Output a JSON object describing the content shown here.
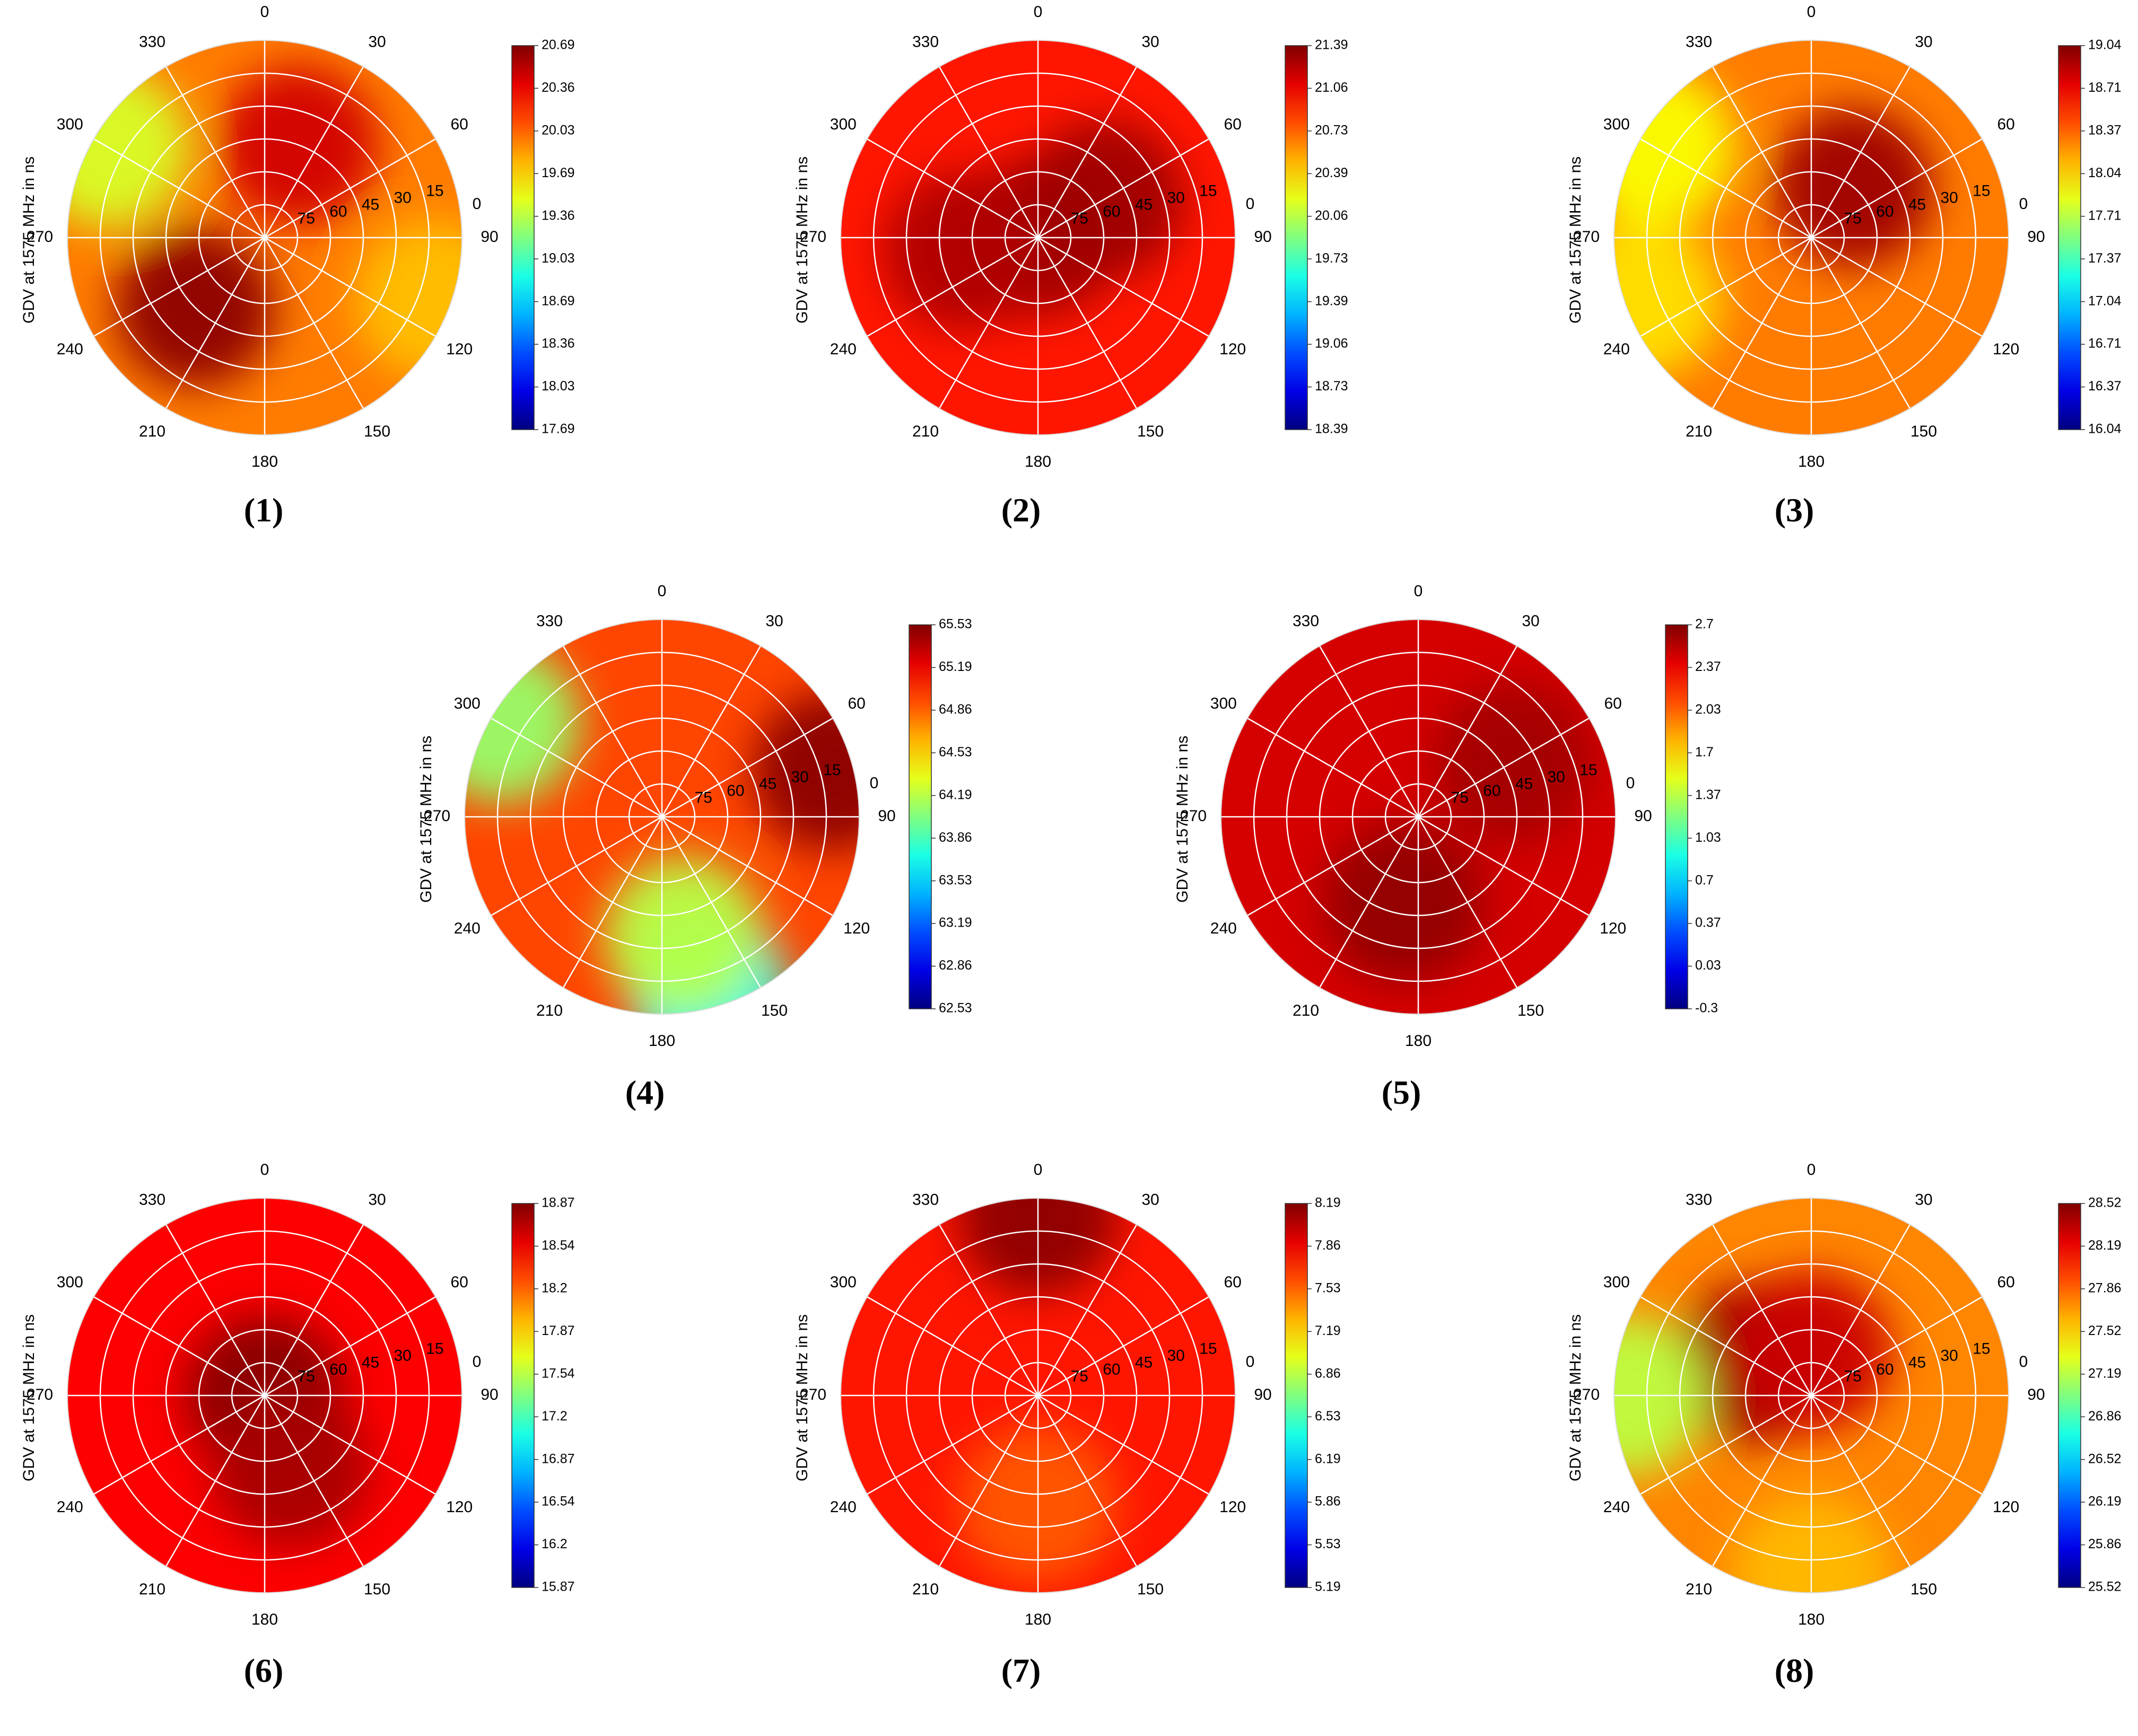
{
  "figure": {
    "panels": [
      {
        "id": "p1",
        "label": "(1)",
        "ylabel": "GDV at 1575 MHz in ns"
      },
      {
        "id": "p2",
        "label": "(2)",
        "ylabel": "GDV at 1575 MHz in ns"
      },
      {
        "id": "p3",
        "label": "(3)",
        "ylabel": "GDV at 1575 MHz in ns"
      },
      {
        "id": "p4",
        "label": "(4)",
        "ylabel": "GDV at 1575 MHz in ns"
      },
      {
        "id": "p5",
        "label": "(5)",
        "ylabel": "GDV at 1575 MHz in ns"
      },
      {
        "id": "p6",
        "label": "(6)",
        "ylabel": "GDV at 1575 MHz in ns"
      },
      {
        "id": "p7",
        "label": "(7)",
        "ylabel": "GDV at 1575 MHz in ns"
      },
      {
        "id": "p8",
        "label": "(8)",
        "ylabel": "GDV at 1575 MHz in ns"
      }
    ]
  },
  "chart_data": [
    {
      "type": "heatmap",
      "subtype": "polar",
      "label": "(1)",
      "ylabel": "GDV at 1575 MHz in ns",
      "azimuth_ticks": [
        "0",
        "30",
        "60",
        "90",
        "120",
        "150",
        "180",
        "210",
        "240",
        "270",
        "300",
        "330"
      ],
      "elevation_ticks": [
        "0",
        "15",
        "30",
        "45",
        "60",
        "75"
      ],
      "colorbar_ticks": [
        "20.69",
        "20.36",
        "20.03",
        "19.69",
        "19.36",
        "19.03",
        "18.69",
        "18.36",
        "18.03",
        "17.69"
      ],
      "colorbar_range": [
        17.69,
        20.69
      ],
      "base_value": 19.95,
      "features": [
        {
          "azimuth": 225,
          "elevation": 45,
          "value": 20.65
        },
        {
          "azimuth": 20,
          "elevation": 45,
          "value": 20.45
        },
        {
          "azimuth": 300,
          "elevation": 8,
          "value": 19.45
        },
        {
          "azimuth": 110,
          "elevation": 8,
          "value": 19.75
        }
      ]
    },
    {
      "type": "heatmap",
      "subtype": "polar",
      "label": "(2)",
      "ylabel": "GDV at 1575 MHz in ns",
      "azimuth_ticks": [
        "0",
        "30",
        "60",
        "90",
        "120",
        "150",
        "180",
        "210",
        "240",
        "270",
        "300",
        "330"
      ],
      "elevation_ticks": [
        "0",
        "15",
        "30",
        "45",
        "60",
        "75"
      ],
      "colorbar_ticks": [
        "21.39",
        "21.06",
        "20.73",
        "20.39",
        "20.06",
        "19.73",
        "19.39",
        "19.06",
        "18.73",
        "18.39"
      ],
      "colorbar_range": [
        18.39,
        21.39
      ],
      "base_value": 20.95,
      "features": [
        {
          "azimuth": 0,
          "elevation": 90,
          "value": 21.3
        },
        {
          "azimuth": 60,
          "elevation": 55,
          "value": 21.3
        },
        {
          "azimuth": 260,
          "elevation": 55,
          "value": 21.25
        }
      ]
    },
    {
      "type": "heatmap",
      "subtype": "polar",
      "label": "(3)",
      "ylabel": "GDV at 1575 MHz in ns",
      "azimuth_ticks": [
        "0",
        "30",
        "60",
        "90",
        "120",
        "150",
        "180",
        "210",
        "240",
        "270",
        "300",
        "330"
      ],
      "elevation_ticks": [
        "0",
        "15",
        "30",
        "45",
        "60",
        "75"
      ],
      "colorbar_ticks": [
        "19.04",
        "18.71",
        "18.37",
        "18.04",
        "17.71",
        "17.37",
        "17.04",
        "16.71",
        "16.37",
        "16.04"
      ],
      "colorbar_range": [
        16.04,
        19.04
      ],
      "base_value": 18.3,
      "features": [
        {
          "azimuth": 40,
          "elevation": 60,
          "value": 18.95
        },
        {
          "azimuth": 300,
          "elevation": 8,
          "value": 17.9
        },
        {
          "azimuth": 250,
          "elevation": 8,
          "value": 18.0
        }
      ]
    },
    {
      "type": "heatmap",
      "subtype": "polar",
      "label": "(4)",
      "ylabel": "GDV at 1575 MHz in ns",
      "azimuth_ticks": [
        "0",
        "30",
        "60",
        "90",
        "120",
        "150",
        "180",
        "210",
        "240",
        "270",
        "300",
        "330"
      ],
      "elevation_ticks": [
        "0",
        "15",
        "30",
        "45",
        "60",
        "75"
      ],
      "colorbar_ticks": [
        "65.53",
        "65.19",
        "64.86",
        "64.53",
        "64.19",
        "63.86",
        "63.53",
        "63.19",
        "62.86",
        "62.53"
      ],
      "colorbar_range": [
        62.53,
        65.53
      ],
      "base_value": 64.95,
      "features": [
        {
          "azimuth": 75,
          "elevation": 10,
          "value": 65.5
        },
        {
          "azimuth": 165,
          "elevation": 8,
          "value": 63.7
        },
        {
          "azimuth": 170,
          "elevation": 35,
          "value": 64.2
        },
        {
          "azimuth": 300,
          "elevation": 5,
          "value": 64.1
        }
      ]
    },
    {
      "type": "heatmap",
      "subtype": "polar",
      "label": "(5)",
      "ylabel": "GDV at 1575 MHz in ns",
      "azimuth_ticks": [
        "0",
        "30",
        "60",
        "90",
        "120",
        "150",
        "180",
        "210",
        "240",
        "270",
        "300",
        "330"
      ],
      "elevation_ticks": [
        "0",
        "15",
        "30",
        "45",
        "60",
        "75"
      ],
      "colorbar_ticks": [
        "2.7",
        "2.37",
        "2.03",
        "1.7",
        "1.37",
        "1.03",
        "0.7",
        "0.37",
        "0.03",
        "-0.3"
      ],
      "colorbar_range": [
        -0.3,
        2.7
      ],
      "base_value": 2.45,
      "features": [
        {
          "azimuth": 190,
          "elevation": 50,
          "value": 2.65
        },
        {
          "azimuth": 60,
          "elevation": 40,
          "value": 2.6
        }
      ]
    },
    {
      "type": "heatmap",
      "subtype": "polar",
      "label": "(6)",
      "ylabel": "GDV at 1575 MHz in ns",
      "azimuth_ticks": [
        "0",
        "30",
        "60",
        "90",
        "120",
        "150",
        "180",
        "210",
        "240",
        "270",
        "300",
        "330"
      ],
      "elevation_ticks": [
        "0",
        "15",
        "30",
        "45",
        "60",
        "75"
      ],
      "colorbar_ticks": [
        "18.87",
        "18.54",
        "18.2",
        "17.87",
        "17.54",
        "17.2",
        "16.87",
        "16.54",
        "16.2",
        "15.87"
      ],
      "colorbar_range": [
        15.87,
        18.87
      ],
      "base_value": 18.5,
      "features": [
        {
          "azimuth": 0,
          "elevation": 90,
          "value": 18.85
        },
        {
          "azimuth": 160,
          "elevation": 55,
          "value": 18.75
        }
      ]
    },
    {
      "type": "heatmap",
      "subtype": "polar",
      "label": "(7)",
      "ylabel": "GDV at 1575 MHz in ns",
      "azimuth_ticks": [
        "0",
        "30",
        "60",
        "90",
        "120",
        "150",
        "180",
        "210",
        "240",
        "270",
        "300",
        "330"
      ],
      "elevation_ticks": [
        "0",
        "15",
        "30",
        "45",
        "60",
        "75"
      ],
      "colorbar_ticks": [
        "8.19",
        "7.86",
        "7.53",
        "7.19",
        "6.86",
        "6.53",
        "6.19",
        "5.86",
        "5.53",
        "5.19"
      ],
      "colorbar_range": [
        5.19,
        8.19
      ],
      "base_value": 7.75,
      "features": [
        {
          "azimuth": 0,
          "elevation": 8,
          "value": 8.15
        },
        {
          "azimuth": 180,
          "elevation": 40,
          "value": 7.55
        }
      ]
    },
    {
      "type": "heatmap",
      "subtype": "polar",
      "label": "(8)",
      "ylabel": "GDV at 1575 MHz in ns",
      "azimuth_ticks": [
        "0",
        "30",
        "60",
        "90",
        "120",
        "150",
        "180",
        "210",
        "240",
        "270",
        "300",
        "330"
      ],
      "elevation_ticks": [
        "0",
        "15",
        "30",
        "45",
        "60",
        "75"
      ],
      "colorbar_ticks": [
        "28.52",
        "28.19",
        "27.86",
        "27.52",
        "27.19",
        "26.86",
        "26.52",
        "26.19",
        "25.86",
        "25.52"
      ],
      "colorbar_range": [
        25.52,
        28.52
      ],
      "base_value": 27.75,
      "features": [
        {
          "azimuth": 300,
          "elevation": 60,
          "value": 28.45
        },
        {
          "azimuth": 0,
          "elevation": 70,
          "value": 28.3
        },
        {
          "azimuth": 270,
          "elevation": 6,
          "value": 27.2
        },
        {
          "azimuth": 180,
          "elevation": 8,
          "value": 27.6
        }
      ]
    }
  ]
}
